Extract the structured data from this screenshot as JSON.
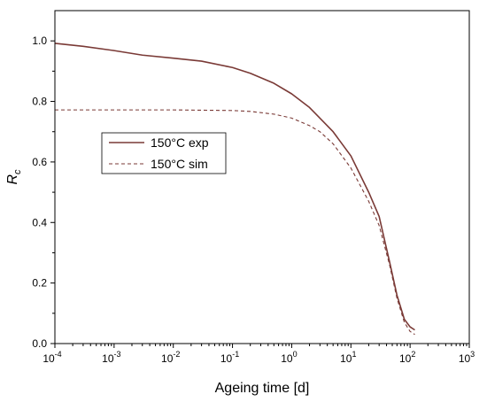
{
  "chart_data": {
    "type": "line",
    "x_scale": "log",
    "xlim": [
      0.0001,
      1000
    ],
    "ylim": [
      0.0,
      1.1
    ],
    "xlabel": "Ageing time [d]",
    "ylabel_main": "R",
    "ylabel_sub": "c",
    "x_ticks": [
      0.0001,
      0.001,
      0.01,
      0.1,
      1,
      10,
      100,
      1000
    ],
    "x_tick_labels": [
      {
        "base": "10",
        "exp": "-4"
      },
      {
        "base": "10",
        "exp": "-3"
      },
      {
        "base": "10",
        "exp": "-2"
      },
      {
        "base": "10",
        "exp": "-1"
      },
      {
        "base": "10",
        "exp": "0"
      },
      {
        "base": "10",
        "exp": "1"
      },
      {
        "base": "10",
        "exp": "2"
      },
      {
        "base": "10",
        "exp": "3"
      }
    ],
    "y_ticks": [
      0.0,
      0.2,
      0.4,
      0.6,
      0.8,
      1.0
    ],
    "y_tick_labels": [
      "0.0",
      "0.2",
      "0.4",
      "0.6",
      "0.8",
      "1.0"
    ],
    "grid": false,
    "legend_position": "center-left",
    "series": [
      {
        "name": "150°C exp",
        "style": "solid",
        "color": "#7a3a36",
        "x": [
          0.0001,
          0.0003,
          0.001,
          0.003,
          0.01,
          0.03,
          0.1,
          0.2,
          0.5,
          1,
          2,
          5,
          10,
          20,
          30,
          45,
          60,
          80,
          100,
          120
        ],
        "y": [
          0.992,
          0.982,
          0.968,
          0.953,
          0.943,
          0.933,
          0.912,
          0.893,
          0.86,
          0.825,
          0.78,
          0.7,
          0.62,
          0.5,
          0.42,
          0.27,
          0.16,
          0.08,
          0.055,
          0.045
        ]
      },
      {
        "name": "150°C sim",
        "style": "dashed",
        "color": "#7a3a36",
        "x": [
          0.0001,
          0.001,
          0.01,
          0.1,
          0.2,
          0.5,
          1,
          2,
          3,
          5,
          10,
          20,
          30,
          45,
          60,
          80,
          100,
          120
        ],
        "y": [
          0.772,
          0.772,
          0.772,
          0.77,
          0.767,
          0.758,
          0.745,
          0.72,
          0.7,
          0.66,
          0.58,
          0.47,
          0.39,
          0.26,
          0.15,
          0.07,
          0.04,
          0.03
        ]
      }
    ]
  }
}
